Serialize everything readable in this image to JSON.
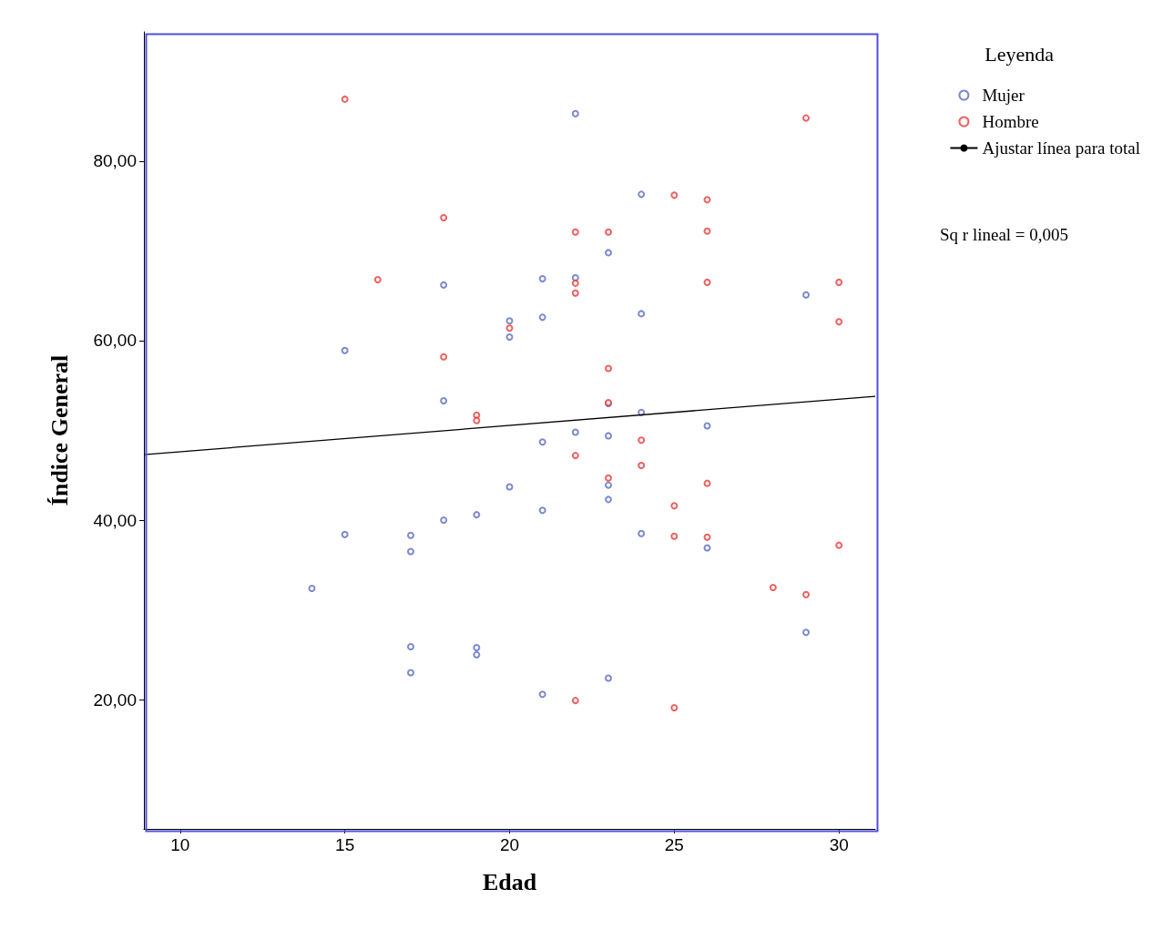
{
  "chart_data": {
    "type": "scatter",
    "xlabel": "Edad",
    "ylabel": "Índice General",
    "legend_title": "Leyenda",
    "annotations": [
      "Sq r lineal = 0,005"
    ],
    "xlim": [
      8.9,
      31.1
    ],
    "xticks": [
      10,
      15,
      20,
      25,
      30
    ],
    "ylim": [
      5.6,
      94.4
    ],
    "yticks": [
      {
        "value": 20,
        "label": "20,00"
      },
      {
        "value": 40,
        "label": "40,00"
      },
      {
        "value": 60,
        "label": "60,00"
      },
      {
        "value": 80,
        "label": "80,00"
      }
    ],
    "grid": false,
    "legend": "top right",
    "marker": "circle",
    "series": [
      {
        "name": "Mujer",
        "color": "#5b6bc0",
        "x": [
          14,
          15,
          15,
          17,
          17,
          17,
          17,
          18,
          18,
          18,
          19,
          19,
          19,
          20,
          20,
          20,
          21,
          21,
          21,
          21,
          21,
          22,
          22,
          22,
          23,
          23,
          23,
          23,
          23,
          23,
          24,
          24,
          24,
          24,
          26,
          26,
          29,
          29
        ],
        "values": [
          32.4,
          58.9,
          38.4,
          38.3,
          36.5,
          25.9,
          23.0,
          66.2,
          53.3,
          40.0,
          40.6,
          25.8,
          25.0,
          62.2,
          60.4,
          43.7,
          66.9,
          62.6,
          48.7,
          41.1,
          20.6,
          85.3,
          67.0,
          49.8,
          69.8,
          53.0,
          49.4,
          43.9,
          42.3,
          22.4,
          76.3,
          63.0,
          52.0,
          38.5,
          50.5,
          36.9,
          65.1,
          27.5
        ]
      },
      {
        "name": "Hombre",
        "color": "#e8393a",
        "x": [
          15,
          16,
          18,
          18,
          19,
          19,
          20,
          22,
          22,
          22,
          22,
          22,
          23,
          23,
          23,
          23,
          24,
          24,
          25,
          25,
          25,
          25,
          26,
          26,
          26,
          26,
          26,
          28,
          29,
          29,
          30,
          30,
          30
        ],
        "values": [
          86.9,
          66.8,
          73.7,
          58.2,
          51.7,
          51.1,
          61.4,
          72.1,
          66.4,
          65.3,
          47.2,
          19.9,
          72.1,
          56.9,
          53.1,
          44.7,
          48.9,
          46.1,
          76.2,
          41.6,
          38.2,
          19.1,
          75.7,
          72.2,
          66.5,
          44.1,
          38.1,
          32.5,
          84.8,
          31.7,
          66.5,
          62.1,
          37.2
        ]
      },
      {
        "name": "Ajustar línea para total",
        "type": "line",
        "color": "#000000",
        "marker": "none",
        "line_style": "solid",
        "x": [
          8.9,
          31.1
        ],
        "values": [
          47.3,
          53.8
        ]
      }
    ]
  }
}
